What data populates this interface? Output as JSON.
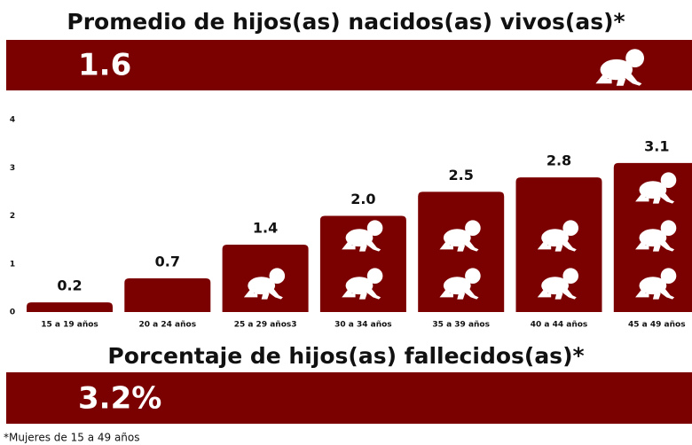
{
  "title": "Promedio de hijos(as) nacidos(as) vivos(as)*",
  "average": 1.6,
  "chart_data": {
    "type": "bar",
    "categories": [
      "15 a 19 años",
      "20 a 24 años",
      "25 a 29 años3",
      "30 a 34 años",
      "35 a 39 años",
      "40 a 44 años",
      "45 a 49 años"
    ],
    "values": [
      0.2,
      0.7,
      1.4,
      2.0,
      2.5,
      2.8,
      3.1
    ],
    "value_labels": [
      "0.2",
      "0.7",
      "1.4",
      "2.0",
      "2.5",
      "2.8",
      "3.1"
    ],
    "color": "#7b0000",
    "ylim": [
      0,
      4
    ],
    "yticks": [
      0,
      1,
      2,
      3,
      4
    ]
  },
  "deceased_title": "Porcentaje de hijos(as) fallecidos(as)*",
  "deceased": {
    "value": 3.2,
    "label": "3.2%"
  },
  "footnote": "*Mujeres de 15 a 49 años"
}
